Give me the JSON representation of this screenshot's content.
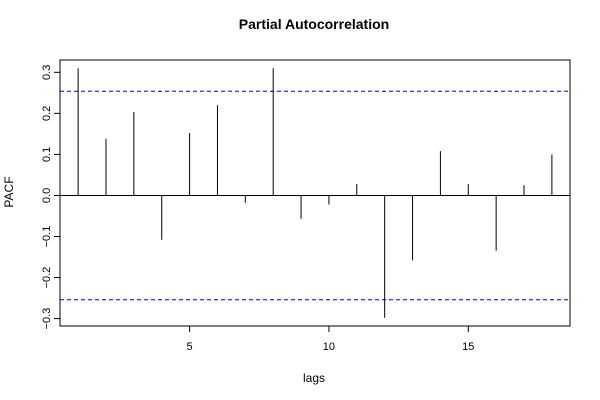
{
  "chart_data": {
    "type": "bar",
    "title": "Partial Autocorrelation",
    "xlabel": "lags",
    "ylabel": "PACF",
    "x": [
      1,
      2,
      3,
      4,
      5,
      6,
      7,
      8,
      9,
      10,
      11,
      12,
      13,
      14,
      15,
      16,
      17,
      18
    ],
    "values": [
      0.31,
      0.138,
      0.203,
      -0.108,
      0.152,
      0.22,
      -0.018,
      0.31,
      -0.057,
      -0.022,
      0.028,
      -0.298,
      -0.158,
      0.108,
      0.028,
      -0.135,
      0.025,
      0.1
    ],
    "xlim": [
      0.35,
      18.65
    ],
    "ylim": [
      -0.318,
      0.33
    ],
    "xticks": [
      5,
      10,
      15
    ],
    "xtick_labels": [
      "5",
      "10",
      "15"
    ],
    "yticks": [
      -0.3,
      -0.2,
      -0.1,
      0.0,
      0.1,
      0.2,
      0.3
    ],
    "ytick_labels": [
      "−0.3",
      "−0.2",
      "−0.1",
      "0.0",
      "0.1",
      "0.2",
      "0.3"
    ],
    "confidence_band": [
      -0.254,
      0.254
    ],
    "colors": {
      "bars": "#000000",
      "confidence": "#0000cc",
      "zero_line": "#000000"
    },
    "grid": false,
    "legend": "none"
  }
}
